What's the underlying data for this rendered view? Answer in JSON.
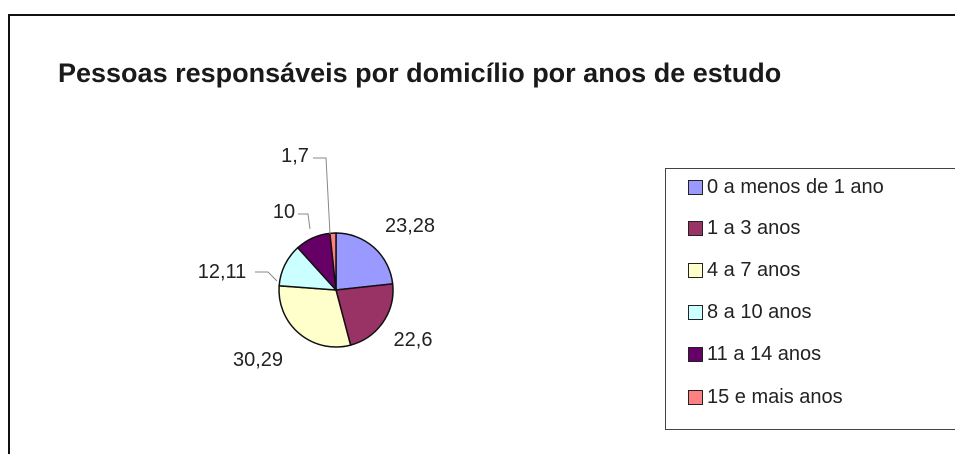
{
  "chart_data": {
    "type": "pie",
    "title": "Pessoas responsáveis por domicílio por anos de estudo",
    "categories": [
      "0 a menos de 1 ano",
      "1 a 3 anos",
      "4 a 7 anos",
      "8 a 10 anos",
      "11 a 14 anos",
      "15 e mais anos"
    ],
    "values": [
      23.28,
      22.6,
      30.29,
      12.11,
      10,
      1.7
    ],
    "value_labels": [
      "23,28",
      "22,6",
      "30,29",
      "12,11",
      "10",
      "1,7"
    ],
    "colors": [
      "#9999ff",
      "#993366",
      "#ffffcc",
      "#ccffff",
      "#660066",
      "#ff8080"
    ],
    "legend": "right"
  }
}
